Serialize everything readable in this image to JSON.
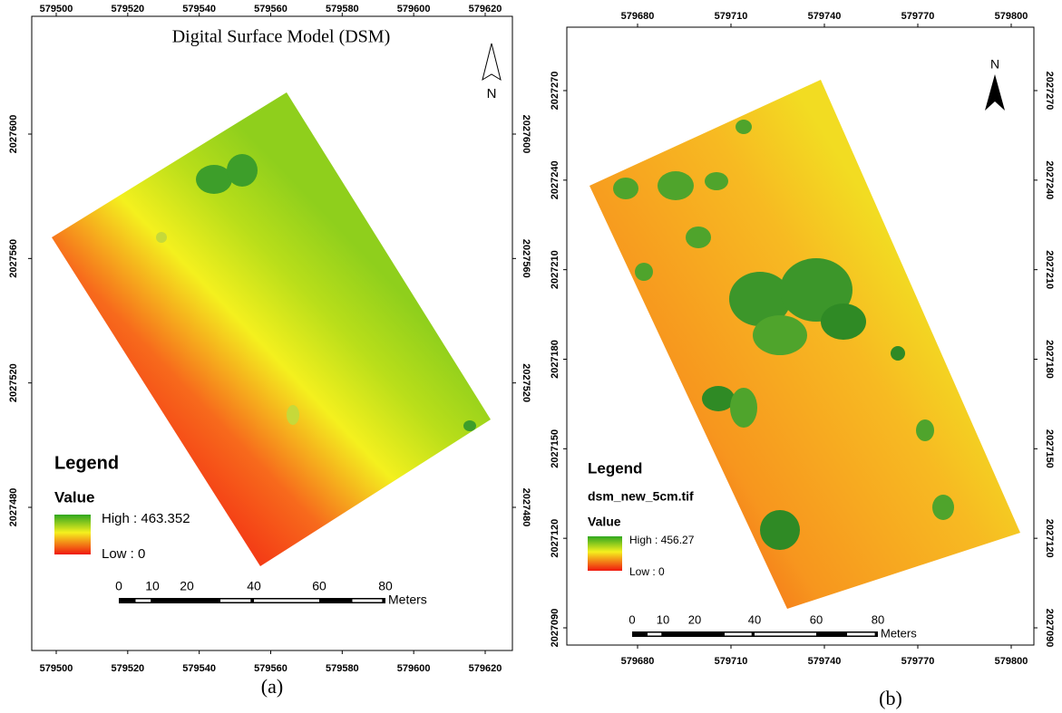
{
  "panels": [
    {
      "title": "Digital Surface Model (DSM)",
      "x_ticks": [
        "579500",
        "579520",
        "579540",
        "579560",
        "579580",
        "579600",
        "579620"
      ],
      "y_ticks": [
        "2027600",
        "2027560",
        "2027520",
        "2027480"
      ],
      "north": "N",
      "legend": {
        "title": "Legend",
        "field": "Value",
        "high": "High : 463.352",
        "low": "Low : 0"
      },
      "scale": {
        "labels": [
          "0",
          "10",
          "20",
          "40",
          "60",
          "80"
        ],
        "unit": "Meters"
      },
      "caption": "(a)"
    },
    {
      "x_ticks": [
        "579680",
        "579710",
        "579740",
        "579770",
        "579800"
      ],
      "y_ticks": [
        "2027270",
        "2027240",
        "2027210",
        "2027180",
        "2027150",
        "2027120",
        "2027090"
      ],
      "north": "N",
      "legend": {
        "title": "Legend",
        "layer": "dsm_new_5cm.tif",
        "field": "Value",
        "high": "High : 456.27",
        "low": "Low : 0"
      },
      "scale": {
        "labels": [
          "0",
          "10",
          "20",
          "40",
          "60",
          "80"
        ],
        "unit": "Meters"
      },
      "caption": "(b)"
    }
  ]
}
